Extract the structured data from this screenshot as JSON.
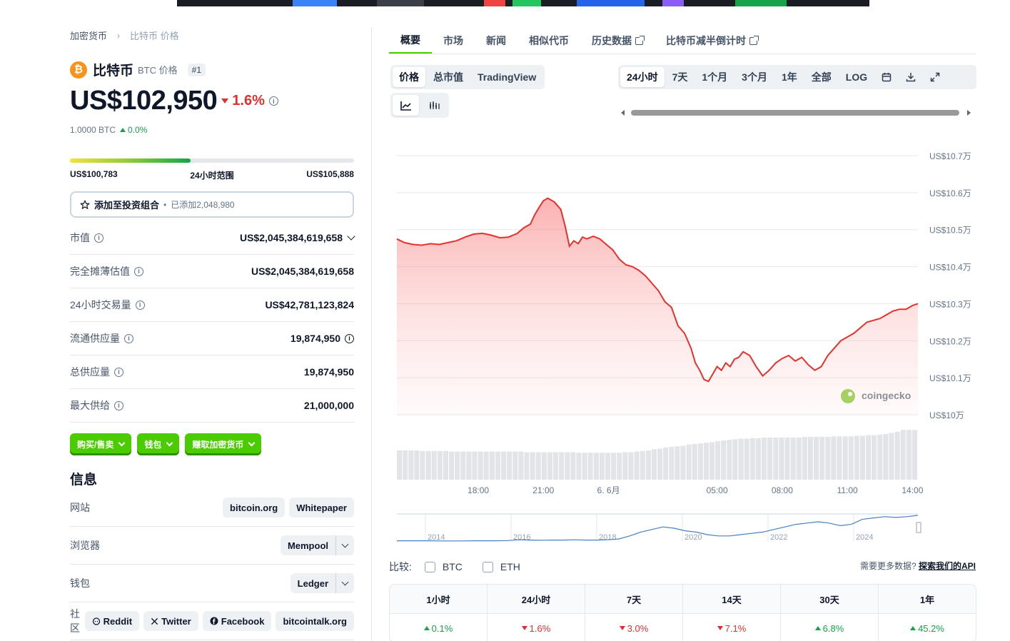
{
  "breadcrumb": {
    "root": "加密货币",
    "current": "比特币 价格"
  },
  "coin": {
    "logo_glyph": "₿",
    "name": "比特币",
    "subtitle": "BTC 价格",
    "rank": "#1"
  },
  "price": {
    "value": "US$102,950",
    "change_24h": "1.6%",
    "btc_value": "1.0000 BTC",
    "btc_change": "0.0%"
  },
  "range": {
    "low": "US$100,783",
    "label": "24小时范围",
    "high": "US$105,888",
    "fill_fraction": 0.425
  },
  "portfolio": {
    "label": "添加至投资组合",
    "added": "已添加2,048,980"
  },
  "stats": [
    {
      "label": "市值",
      "value": "US$2,045,384,619,658",
      "info": true,
      "chevron": true,
      "value_info": false
    },
    {
      "label": "完全摊薄估值",
      "value": "US$2,045,384,619,658",
      "info": true,
      "chevron": false,
      "value_info": false
    },
    {
      "label": "24小时交易量",
      "value": "US$42,781,123,824",
      "info": true,
      "chevron": false,
      "value_info": false
    },
    {
      "label": "流通供应量",
      "value": "19,874,950",
      "info": true,
      "chevron": false,
      "value_info": true
    },
    {
      "label": "总供应量",
      "value": "19,874,950",
      "info": true,
      "chevron": false,
      "value_info": false
    },
    {
      "label": "最大供给",
      "value": "21,000,000",
      "info": true,
      "chevron": false,
      "value_info": false
    }
  ],
  "actions": {
    "buy_sell": "购买/售卖",
    "wallet": "钱包",
    "earn": "赚取加密货币"
  },
  "info": {
    "title": "信息",
    "website_label": "网站",
    "website_links": [
      "bitcoin.org",
      "Whitepaper"
    ],
    "explorer_label": "浏览器",
    "explorer_value": "Mempool",
    "wallet_label": "钱包",
    "wallet_value": "Ledger",
    "community_label": "社区",
    "community_links": [
      "Reddit",
      "Twitter",
      "Facebook",
      "bitcointalk.org"
    ]
  },
  "tabs": [
    "概要",
    "市场",
    "新闻",
    "相似代币",
    "历史数据",
    "比特币减半倒计时"
  ],
  "chart_mode": [
    "价格",
    "总市值",
    "TradingView"
  ],
  "time_ranges": [
    "24小时",
    "7天",
    "1个月",
    "3个月",
    "1年",
    "全部",
    "LOG"
  ],
  "watermark": "coingecko",
  "compare": {
    "label": "比较:",
    "options": [
      "BTC",
      "ETH"
    ]
  },
  "api": {
    "prefix": "需要更多数据?",
    "link": "探索我们的API"
  },
  "performance": [
    {
      "period": "1小时",
      "value": "0.1%",
      "dir": "up"
    },
    {
      "period": "24小时",
      "value": "1.6%",
      "dir": "down"
    },
    {
      "period": "7天",
      "value": "3.0%",
      "dir": "down"
    },
    {
      "period": "14天",
      "value": "7.1%",
      "dir": "down"
    },
    {
      "period": "30天",
      "value": "6.8%",
      "dir": "up"
    },
    {
      "period": "1年",
      "value": "45.2%",
      "dir": "up"
    }
  ],
  "chart_data": {
    "type": "area",
    "y_tick_labels": [
      "US$10.7万",
      "US$10.6万",
      "US$10.5万",
      "US$10.4万",
      "US$10.3万",
      "US$10.2万",
      "US$10.1万",
      "US$10万"
    ],
    "ylim": [
      100000,
      107000
    ],
    "x_tick_labels": [
      "18:00",
      "21:00",
      "6. 6月",
      "05:00",
      "08:00",
      "11:00",
      "14:00"
    ],
    "x_tick_hours": [
      18,
      21,
      24,
      29,
      32,
      35,
      38
    ],
    "xlim_hours": [
      14.25,
      38.25
    ],
    "series": [
      {
        "x_hours": [
          14.25,
          14.6,
          15.0,
          15.4,
          15.8,
          16.2,
          16.6,
          17.0,
          17.4,
          17.8,
          18.2,
          18.6,
          19.0,
          19.4,
          19.8,
          20.1,
          20.4,
          20.6,
          20.8,
          21.0,
          21.2,
          21.5,
          21.8,
          22.0,
          22.2,
          22.4,
          22.6,
          22.8,
          23.0,
          23.3,
          23.6,
          23.9,
          24.2,
          24.5,
          24.8,
          25.1,
          25.4,
          25.7,
          26.0,
          26.3,
          26.6,
          26.9,
          27.2,
          27.5,
          27.8,
          28.0,
          28.2,
          28.4,
          28.6,
          28.8,
          29.0,
          29.2,
          29.4,
          29.6,
          29.8,
          30.0,
          30.2,
          30.5,
          30.8,
          31.1,
          31.4,
          31.7,
          32.0,
          32.3,
          32.6,
          32.9,
          33.2,
          33.5,
          33.8,
          34.1,
          34.4,
          34.7,
          35.0,
          35.3,
          35.6,
          35.9,
          36.2,
          36.5,
          36.8,
          37.1,
          37.4,
          37.7,
          38.0,
          38.25
        ],
        "values": [
          104750,
          104650,
          104600,
          104580,
          104620,
          104600,
          104650,
          104700,
          104800,
          104880,
          104900,
          104850,
          104780,
          104800,
          104900,
          105050,
          105150,
          105400,
          105600,
          105780,
          105850,
          105750,
          105550,
          105100,
          104550,
          104700,
          104620,
          104800,
          104750,
          104820,
          104750,
          104600,
          104450,
          104200,
          104050,
          104000,
          103900,
          103750,
          103550,
          103350,
          103050,
          102900,
          102400,
          102200,
          101800,
          101400,
          101200,
          100950,
          100900,
          101100,
          101300,
          101200,
          101400,
          101300,
          101500,
          101550,
          101700,
          101600,
          101300,
          101050,
          101200,
          101400,
          101520,
          101600,
          101450,
          101550,
          101350,
          101200,
          101300,
          101600,
          101800,
          102000,
          102100,
          102200,
          102350,
          102500,
          102550,
          102600,
          102700,
          102800,
          102850,
          102850,
          102950,
          103000
        ]
      }
    ],
    "volume_relative": [
      0.5,
      0.5,
      0.5,
      0.5,
      0.49,
      0.49,
      0.49,
      0.49,
      0.49,
      0.48,
      0.48,
      0.48,
      0.48,
      0.48,
      0.48,
      0.48,
      0.48,
      0.48,
      0.48,
      0.48,
      0.48,
      0.48,
      0.47,
      0.47,
      0.47,
      0.47,
      0.47,
      0.47,
      0.47,
      0.47,
      0.47,
      0.46,
      0.46,
      0.46,
      0.46,
      0.46,
      0.46,
      0.46,
      0.46,
      0.47,
      0.47,
      0.48,
      0.49,
      0.5,
      0.52,
      0.53,
      0.55,
      0.56,
      0.57,
      0.58,
      0.6,
      0.61,
      0.62,
      0.63,
      0.64,
      0.66,
      0.67,
      0.68,
      0.69,
      0.7,
      0.7,
      0.71,
      0.71,
      0.72,
      0.72,
      0.72,
      0.72,
      0.72,
      0.72,
      0.72,
      0.73,
      0.73,
      0.73,
      0.73,
      0.73,
      0.74,
      0.74,
      0.74,
      0.74,
      0.75,
      0.75,
      0.76,
      0.76,
      0.77,
      0.78,
      0.8,
      0.82,
      0.85,
      0.85,
      0.85
    ],
    "navigator_x_labels": [
      "2014",
      "2016",
      "2018",
      "2020",
      "2022",
      "2024"
    ],
    "navigator_values": [
      0.01,
      0.01,
      0.01,
      0.01,
      0.005,
      0.005,
      0.005,
      0.01,
      0.01,
      0.01,
      0.02,
      0.05,
      0.04,
      0.03,
      0.04,
      0.04,
      0.05,
      0.04,
      0.04,
      0.05,
      0.08,
      0.2,
      0.35,
      0.45,
      0.55,
      0.5,
      0.4,
      0.35,
      0.25,
      0.2,
      0.2,
      0.25,
      0.3,
      0.35,
      0.45,
      0.55,
      0.65,
      0.7,
      0.75,
      0.7,
      0.6,
      0.65,
      0.85,
      0.9,
      0.95,
      0.92,
      0.95,
      1.0
    ]
  }
}
